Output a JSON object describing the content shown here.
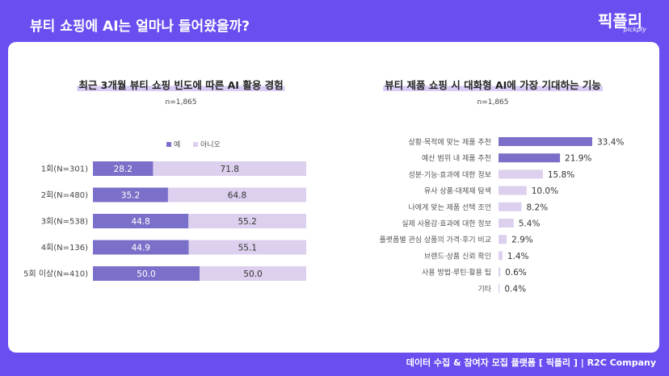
{
  "header": {
    "title": "뷰티 쇼핑에 AI는 얼마나 들어왔을까?"
  },
  "logo": {
    "main": "픽플리",
    "sub": "pickply"
  },
  "footer": {
    "text": "데이터 수집 & 참여자 모집 플랫폼 [ 픽플리 ]  |  R2C Company"
  },
  "chart_data": [
    {
      "type": "bar",
      "orientation": "horizontal",
      "stacked": true,
      "title": "최근 3개월 뷰티 쇼핑 빈도에 따른 AI 활용 경험",
      "subtitle": "n=1,865",
      "categories": [
        "1회(N=301)",
        "2회(N=480)",
        "3회(N=538)",
        "4회(N=136)",
        "5회 이상(N=410)"
      ],
      "series": [
        {
          "name": "예",
          "values": [
            28.2,
            35.2,
            44.8,
            44.9,
            50.0
          ],
          "color": "#7b70c9"
        },
        {
          "name": "아니오",
          "values": [
            71.8,
            64.8,
            55.2,
            55.1,
            50.0
          ],
          "color": "#ddd0ee"
        }
      ],
      "legend_position": "top",
      "xlim": [
        0,
        100
      ]
    },
    {
      "type": "bar",
      "orientation": "horizontal",
      "title": "뷰티 제품 쇼핑 시 대화형 AI에 가장 기대하는 기능",
      "subtitle": "n=1,865",
      "categories": [
        "상황·목적에 맞는 제품 추천",
        "예산 범위 내 제품 추천",
        "성분·기능·효과에 대한 정보",
        "유사 상품·대체재 탐색",
        "나에게 맞는 제품 선택 조언",
        "실제 사용감·효과에 대한 정보",
        "플랫폼별 관심 상품의 가격·후기 비교",
        "브랜드·상품 신뢰 확인",
        "사용 방법·루틴·활용 팁",
        "기타"
      ],
      "values": [
        33.4,
        21.9,
        15.8,
        10.0,
        8.2,
        5.4,
        2.9,
        1.4,
        0.6,
        0.4
      ],
      "labels": [
        "33.4%",
        "21.9%",
        "15.8%",
        "10.0%",
        "8.2%",
        "5.4%",
        "2.9%",
        "1.4%",
        "0.6%",
        "0.4%"
      ],
      "colors": {
        "top": "#7b70c9",
        "rest": "#ddd0ee"
      }
    }
  ]
}
